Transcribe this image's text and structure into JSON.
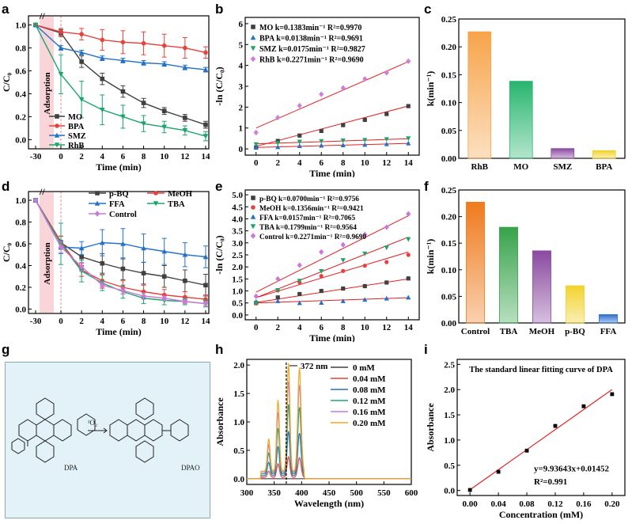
{
  "panel_labels": [
    "a",
    "b",
    "c",
    "d",
    "e",
    "f",
    "g",
    "h",
    "i"
  ],
  "colors": {
    "MO": "#404040",
    "BPA": "#e8413c",
    "SMZ": "#2472c8",
    "RhB": "#1aa56b",
    "pBQ": "#404040",
    "MeOH": "#e8413c",
    "FFA": "#2472c8",
    "TBA": "#1aa56b",
    "Control": "#c879d9",
    "b_RhB": "#d07ddd",
    "b_MO": "#404040",
    "b_BPA": "#2472c8",
    "b_SMZ": "#1aa56b",
    "fit": "#e02020"
  },
  "chart_data": [
    {
      "id": "a",
      "type": "line",
      "xlabel": "Time (min)",
      "ylabel": "C/C₀",
      "x_ticks": [
        "-30",
        "0",
        "2",
        "4",
        "6",
        "8",
        "10",
        "12",
        "14"
      ],
      "y_ticks": [
        "0.0",
        "0.2",
        "0.4",
        "0.6",
        "0.8",
        "1.0"
      ],
      "ylim": [
        -0.08,
        1.08
      ],
      "annotation": "Adsorption",
      "x": [
        -30,
        0,
        2,
        4,
        6,
        8,
        10,
        12,
        14
      ],
      "series": [
        {
          "name": "MO",
          "color_key": "MO",
          "marker": "square",
          "values": [
            1.0,
            0.93,
            0.68,
            0.53,
            0.42,
            0.32,
            0.25,
            0.19,
            0.13
          ],
          "errors": [
            0.01,
            0.03,
            0.05,
            0.05,
            0.05,
            0.04,
            0.03,
            0.03,
            0.03
          ]
        },
        {
          "name": "BPA",
          "color_key": "BPA",
          "marker": "circle",
          "values": [
            1.0,
            0.94,
            0.92,
            0.87,
            0.85,
            0.84,
            0.82,
            0.8,
            0.76
          ],
          "errors": [
            0.01,
            0.03,
            0.05,
            0.09,
            0.1,
            0.1,
            0.1,
            0.09,
            0.05
          ]
        },
        {
          "name": "SMZ",
          "color_key": "SMZ",
          "marker": "triangle",
          "values": [
            1.0,
            0.8,
            0.76,
            0.71,
            0.69,
            0.67,
            0.66,
            0.63,
            0.61
          ],
          "errors": [
            0.01,
            0.02,
            0.02,
            0.02,
            0.02,
            0.02,
            0.02,
            0.02,
            0.02
          ]
        },
        {
          "name": "RhB",
          "color_key": "RhB",
          "marker": "triangle-down",
          "values": [
            1.0,
            0.57,
            0.35,
            0.26,
            0.2,
            0.14,
            0.11,
            0.08,
            0.03
          ],
          "errors": [
            0.01,
            0.17,
            0.16,
            0.13,
            0.1,
            0.07,
            0.05,
            0.04,
            0.04
          ]
        }
      ]
    },
    {
      "id": "b",
      "type": "scatter",
      "xlabel": "Time (min)",
      "ylabel": "-ln (C/C₀)",
      "x_ticks": [
        "0",
        "2",
        "4",
        "6",
        "8",
        "10",
        "12",
        "14"
      ],
      "y_ticks": [
        "0",
        "1",
        "2",
        "3",
        "4",
        "5",
        "6"
      ],
      "xlim": [
        -1,
        15
      ],
      "ylim": [
        -0.3,
        6.3
      ],
      "x": [
        0,
        2,
        4,
        6,
        8,
        10,
        12,
        14
      ],
      "series": [
        {
          "name": "MO",
          "label": "MO   k=0.1383min⁻¹   R²=0.9970",
          "color_key": "b_MO",
          "marker": "square",
          "values": [
            0.07,
            0.38,
            0.64,
            0.86,
            1.14,
            1.39,
            1.67,
            2.05
          ],
          "fit": [
            0.1383,
            0.12
          ]
        },
        {
          "name": "BPA",
          "label": "BPA  k=0.0138min⁻¹   R²=0.9691",
          "color_key": "b_BPA",
          "marker": "triangle",
          "values": [
            0.06,
            0.09,
            0.14,
            0.16,
            0.18,
            0.2,
            0.23,
            0.27
          ],
          "fit": [
            0.0138,
            0.07
          ]
        },
        {
          "name": "SMZ",
          "label": "SMZ  k=0.0175min⁻¹   R²=0.9827",
          "color_key": "b_SMZ",
          "marker": "triangle-down",
          "values": [
            0.22,
            0.28,
            0.34,
            0.37,
            0.4,
            0.42,
            0.46,
            0.5
          ],
          "fit": [
            0.0175,
            0.24
          ]
        },
        {
          "name": "RhB",
          "label": "RhB  k=0.2271min⁻¹   R²=0.9690",
          "color_key": "b_RhB",
          "marker": "diamond",
          "values": [
            0.78,
            1.5,
            2.07,
            2.62,
            2.92,
            3.35,
            3.65,
            4.2
          ],
          "fit": [
            0.2271,
            1.0
          ]
        }
      ]
    },
    {
      "id": "c",
      "type": "bar",
      "ylabel": "k(min⁻¹)",
      "categories": [
        "RhB",
        "MO",
        "SMZ",
        "BPA"
      ],
      "values": [
        0.2271,
        0.1383,
        0.0175,
        0.0138
      ],
      "bar_colors": [
        "#f7a44a",
        "#27b56e",
        "#8a4aa0",
        "#f2d22c"
      ],
      "y_ticks": [
        "0.00",
        "0.05",
        "0.10",
        "0.15",
        "0.20",
        "0.25"
      ],
      "ylim": [
        0,
        0.25
      ]
    },
    {
      "id": "d",
      "type": "line",
      "xlabel": "Time (min)",
      "ylabel": "C/C₀",
      "x_ticks": [
        "-30",
        "0",
        "2",
        "4",
        "6",
        "8",
        "10",
        "12",
        "14"
      ],
      "y_ticks": [
        "0.0",
        "0.2",
        "0.4",
        "0.6",
        "0.8",
        "1.0"
      ],
      "ylim": [
        -0.04,
        1.08
      ],
      "annotation": "Adsorption",
      "x": [
        -30,
        0,
        2,
        4,
        6,
        8,
        10,
        12,
        14
      ],
      "series": [
        {
          "name": "p-BQ",
          "color_key": "pBQ",
          "marker": "square",
          "values": [
            1.0,
            0.61,
            0.48,
            0.42,
            0.37,
            0.33,
            0.3,
            0.26,
            0.22
          ],
          "errors": [
            0.01,
            0.06,
            0.08,
            0.09,
            0.1,
            0.1,
            0.1,
            0.1,
            0.1
          ]
        },
        {
          "name": "MeOH",
          "color_key": "MeOH",
          "marker": "circle",
          "values": [
            1.0,
            0.62,
            0.36,
            0.26,
            0.2,
            0.16,
            0.13,
            0.11,
            0.09
          ],
          "errors": [
            0.01,
            0.05,
            0.06,
            0.06,
            0.06,
            0.06,
            0.05,
            0.05,
            0.04
          ]
        },
        {
          "name": "FFA",
          "color_key": "FFA",
          "marker": "triangle",
          "values": [
            1.0,
            0.57,
            0.56,
            0.61,
            0.6,
            0.56,
            0.53,
            0.5,
            0.48
          ],
          "errors": [
            0.01,
            0.06,
            0.06,
            0.12,
            0.14,
            0.13,
            0.12,
            0.11,
            0.1
          ]
        },
        {
          "name": "TBA",
          "color_key": "TBA",
          "marker": "triangle-down",
          "values": [
            1.0,
            0.6,
            0.35,
            0.24,
            0.16,
            0.1,
            0.08,
            0.07,
            0.05
          ],
          "errors": [
            0.01,
            0.19,
            0.1,
            0.07,
            0.06,
            0.05,
            0.04,
            0.03,
            0.03
          ]
        },
        {
          "name": "Control",
          "color_key": "Control",
          "marker": "diamond",
          "values": [
            1.0,
            0.57,
            0.39,
            0.22,
            0.17,
            0.12,
            0.1,
            0.07,
            0.05
          ],
          "errors": [
            0.01,
            0.05,
            0.04,
            0.03,
            0.03,
            0.03,
            0.02,
            0.02,
            0.02
          ]
        }
      ]
    },
    {
      "id": "e",
      "type": "scatter",
      "xlabel": "Time (min)",
      "ylabel": "-ln (C/C₀)",
      "x_ticks": [
        "0",
        "2",
        "4",
        "6",
        "8",
        "10",
        "12",
        "14"
      ],
      "y_ticks": [
        "0.0",
        "0.5",
        "1.0",
        "1.5",
        "2.0",
        "2.5",
        "3.0",
        "3.5",
        "4.0",
        "4.5",
        "5.0"
      ],
      "xlim": [
        -1,
        15
      ],
      "ylim": [
        -0.2,
        5.2
      ],
      "x": [
        0,
        2,
        4,
        6,
        8,
        10,
        12,
        14
      ],
      "series": [
        {
          "name": "p-BQ",
          "label": "p-BQ   k=0.0700min⁻¹    R²=0.9756",
          "color_key": "pBQ",
          "marker": "square",
          "values": [
            0.5,
            0.73,
            0.87,
            1.0,
            1.1,
            1.2,
            1.35,
            1.52
          ],
          "fit": [
            0.07,
            0.52
          ]
        },
        {
          "name": "MeOH",
          "label": "MeOH  k=0.1356min⁻¹    R²=0.9421",
          "color_key": "MeOH",
          "marker": "circle",
          "values": [
            0.48,
            1.02,
            1.35,
            1.62,
            1.83,
            2.05,
            2.2,
            2.5
          ],
          "fit": [
            0.1356,
            0.72
          ]
        },
        {
          "name": "FFA",
          "label": "FFA    k=0.0157min⁻¹    R²=0.7065",
          "color_key": "FFA",
          "marker": "triangle",
          "values": [
            0.56,
            0.58,
            0.5,
            0.51,
            0.58,
            0.64,
            0.69,
            0.73
          ],
          "fit": [
            0.0157,
            0.5
          ]
        },
        {
          "name": "TBA",
          "label": "TBA     k=0.1799min⁻¹    R²=0.9564",
          "color_key": "TBA",
          "marker": "triangle-down",
          "values": [
            0.5,
            1.03,
            1.42,
            1.82,
            2.28,
            2.55,
            2.8,
            3.15
          ],
          "fit": [
            0.1799,
            0.72
          ]
        },
        {
          "name": "Control",
          "label": "Control  k=0.2271min⁻¹   R²=0.9690",
          "color_key": "Control",
          "marker": "diamond",
          "values": [
            0.78,
            1.5,
            2.07,
            2.62,
            2.92,
            3.35,
            3.65,
            4.2
          ],
          "fit": [
            0.2271,
            0.95
          ]
        }
      ]
    },
    {
      "id": "f",
      "type": "bar",
      "ylabel": "k(min⁻¹)",
      "categories": [
        "Control",
        "TBA",
        "MeOH",
        "p-BQ",
        "FFA"
      ],
      "values": [
        0.2271,
        0.1799,
        0.1356,
        0.07,
        0.0157
      ],
      "bar_colors": [
        "#f07a1c",
        "#36a34a",
        "#8a4aa0",
        "#f2d22c",
        "#2a6fd0"
      ],
      "y_ticks": [
        "0.00",
        "0.05",
        "0.10",
        "0.15",
        "0.20",
        "0.25"
      ],
      "ylim": [
        0,
        0.25
      ]
    },
    {
      "id": "h",
      "type": "line",
      "xlabel": "Wavelength (nm)",
      "ylabel": "Absorbance",
      "x_ticks": [
        "300",
        "350",
        "400",
        "450",
        "500",
        "550",
        "600"
      ],
      "y_ticks": [
        "0.0",
        "0.5",
        "1.0",
        "1.5",
        "2.0"
      ],
      "xlim": [
        300,
        600
      ],
      "ylim": [
        -0.1,
        2.1
      ],
      "annotation": "372 nm",
      "peaks": [
        {
          "c": 340,
          "h": 0.3,
          "w": 3.5
        },
        {
          "c": 357,
          "h": 0.66,
          "w": 3.5
        },
        {
          "c": 376,
          "h": 1.0,
          "w": 3.6
        },
        {
          "c": 396,
          "h": 0.96,
          "w": 4.2
        }
      ],
      "series": [
        {
          "name": "0 mM",
          "color": "#404040",
          "scale": 0.0
        },
        {
          "name": "0.04 mM",
          "color": "#e8413c",
          "scale": 0.36
        },
        {
          "name": "0.08 mM",
          "color": "#2472c8",
          "scale": 0.78
        },
        {
          "name": "0.12 mM",
          "color": "#1aa56b",
          "scale": 1.22
        },
        {
          "name": "0.16 mM",
          "color": "#c879d9",
          "scale": 1.6
        },
        {
          "name": "0.20 mM",
          "color": "#f0a81c",
          "scale": 1.9
        }
      ]
    },
    {
      "id": "i",
      "type": "scatter",
      "title": "The standard linear fitting curve of DPA",
      "xlabel": "Concentration (mM)",
      "ylabel": "Absorbance",
      "x_ticks": [
        "0.00",
        "0.04",
        "0.08",
        "0.12",
        "0.16",
        "0.20"
      ],
      "y_ticks": [
        "0.0",
        "0.5",
        "1.0",
        "1.5",
        "2.0",
        "2.5"
      ],
      "xlim": [
        -0.018,
        0.218
      ],
      "ylim": [
        -0.1,
        2.6
      ],
      "x": [
        0.0,
        0.04,
        0.08,
        0.12,
        0.16,
        0.2
      ],
      "values": [
        0.01,
        0.37,
        0.79,
        1.28,
        1.67,
        1.91
      ],
      "fit": [
        9.93643,
        0.01452
      ],
      "equation": "y=9.93643x+0.01452",
      "r2": "R²=0.991"
    }
  ],
  "scheme_g": {
    "dpa": "DPA",
    "dpao": "DPAO",
    "reagent": "¹O₂"
  }
}
